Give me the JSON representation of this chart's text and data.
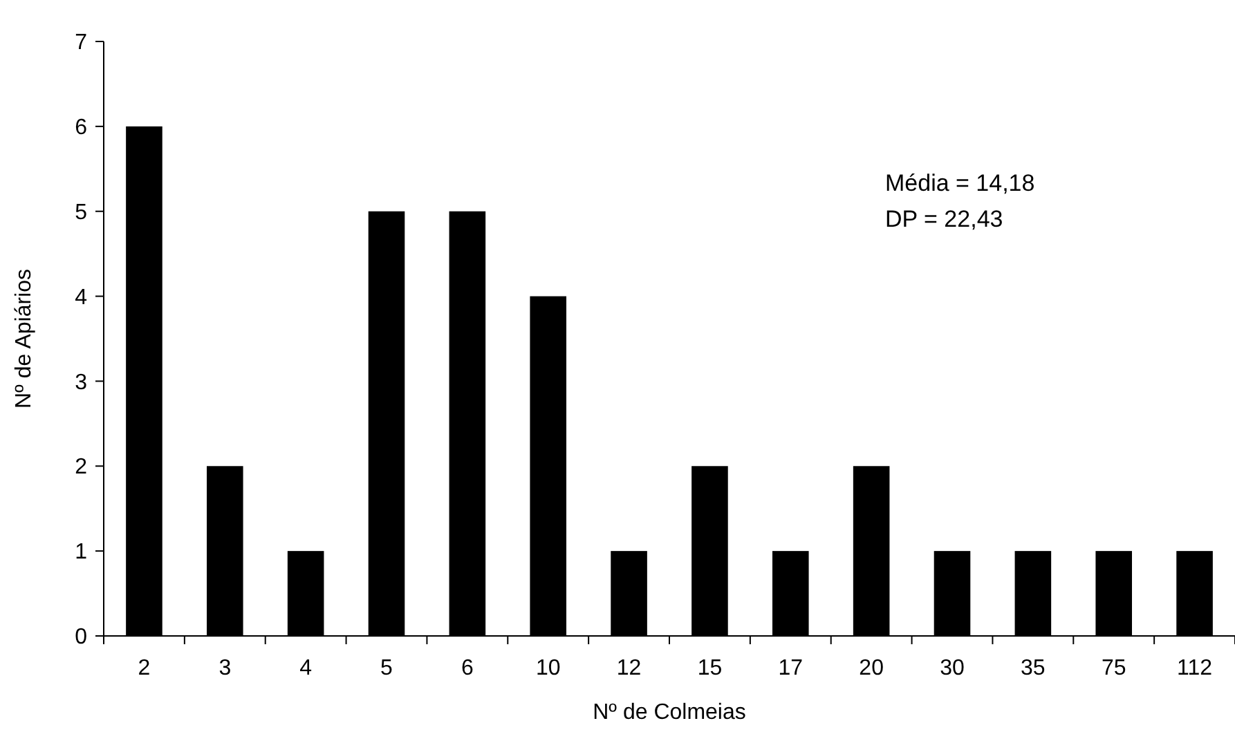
{
  "chart_data": {
    "type": "bar",
    "xlabel": "Nº de Colmeias",
    "ylabel": "Nº de Apiários",
    "categories": [
      "2",
      "3",
      "4",
      "5",
      "6",
      "10",
      "12",
      "15",
      "17",
      "20",
      "30",
      "35",
      "75",
      "112"
    ],
    "values": [
      6,
      2,
      1,
      5,
      5,
      4,
      1,
      2,
      1,
      2,
      1,
      1,
      1,
      1
    ],
    "color": "#000000",
    "ylim": [
      0,
      7
    ],
    "yticks": [
      0,
      1,
      2,
      3,
      4,
      5,
      6,
      7
    ],
    "grid": false,
    "annotations": [
      "Média = 14,18",
      "DP = 22,43"
    ]
  }
}
